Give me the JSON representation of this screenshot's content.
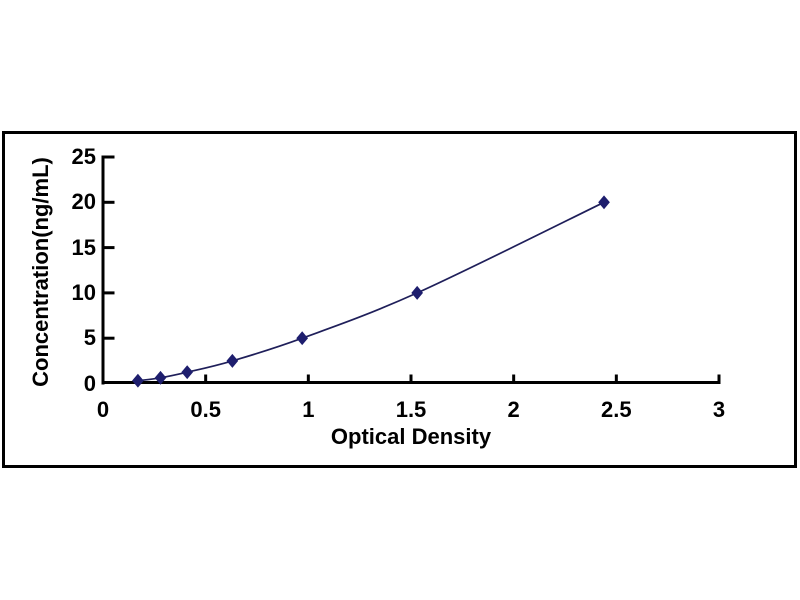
{
  "figure": {
    "background": "#ffffff",
    "frame_color": "#000000",
    "text_color": "#000000"
  },
  "chart_data": {
    "type": "line",
    "title": "",
    "xlabel": "Optical Density",
    "ylabel": "Concentration(ng/mL)",
    "x": [
      0.17,
      0.28,
      0.41,
      0.63,
      0.97,
      1.53,
      2.44
    ],
    "y": [
      0.31,
      0.63,
      1.25,
      2.5,
      5,
      10,
      20
    ],
    "xlim": [
      0,
      3
    ],
    "ylim": [
      0,
      25
    ],
    "xticks": [
      0,
      0.5,
      1,
      1.5,
      2,
      2.5,
      3
    ],
    "xtick_labels": [
      "0",
      "0.5",
      "1",
      "1.5",
      "2",
      "2.5",
      "3"
    ],
    "yticks": [
      0,
      5,
      10,
      15,
      20,
      25
    ],
    "ytick_labels": [
      "0",
      "5",
      "10",
      "15",
      "20",
      "25"
    ],
    "grid": false,
    "legend": null,
    "line_color": "#1f1f5a",
    "marker": "diamond",
    "marker_color": "#1e1e6e",
    "axis_color": "#000000"
  }
}
